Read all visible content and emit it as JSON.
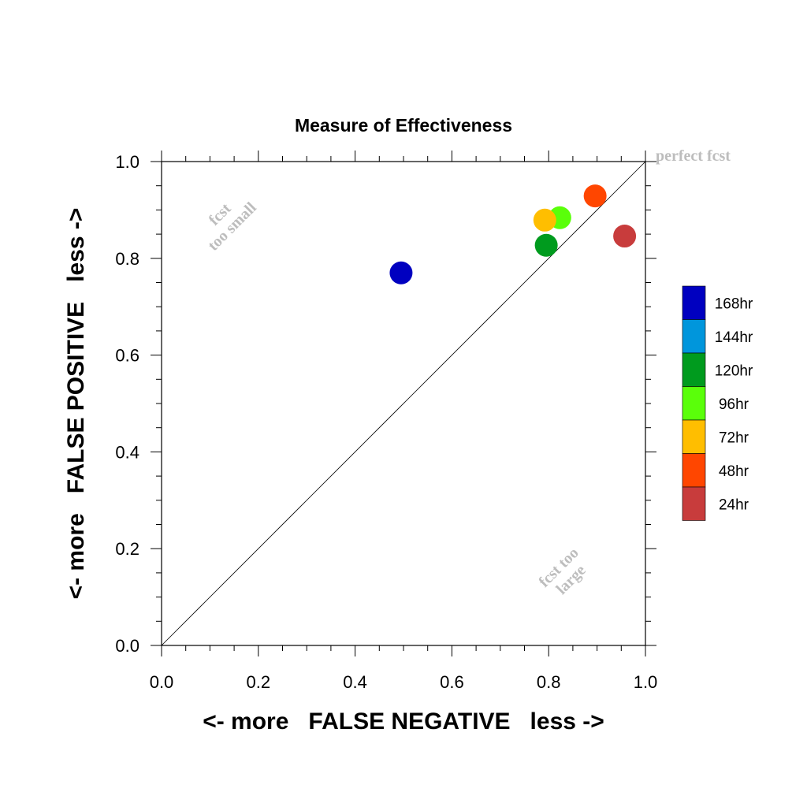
{
  "chart_data": {
    "type": "scatter",
    "title": "Measure of Effectiveness",
    "xlabel": "<- more   FALSE NEGATIVE   less ->",
    "ylabel": "<- more   FALSE POSITIVE   less ->",
    "xlim": [
      0,
      1
    ],
    "ylim": [
      0,
      1
    ],
    "x_ticks": [
      "0.0",
      "0.2",
      "0.4",
      "0.6",
      "0.8",
      "1.0"
    ],
    "y_ticks": [
      "0.0",
      "0.2",
      "0.4",
      "0.6",
      "0.8",
      "1.0"
    ],
    "grid": false,
    "reference_line": {
      "from": [
        0,
        0
      ],
      "to": [
        1,
        1
      ]
    },
    "annotations": {
      "perfect": "perfect fcst",
      "small_line1": "fcst",
      "small_line2": "too small",
      "large_line1": "fcst too",
      "large_line2": "large"
    },
    "legend": {
      "position": "right",
      "entries": [
        {
          "label": "168hr",
          "color": "#0000c0"
        },
        {
          "label": "144hr",
          "color": "#0096dc"
        },
        {
          "label": "120hr",
          "color": "#009b1e"
        },
        {
          "label": "96hr",
          "color": "#5aff0a"
        },
        {
          "label": "72hr",
          "color": "#ffbe00"
        },
        {
          "label": "48hr",
          "color": "#ff4600"
        },
        {
          "label": "24hr",
          "color": "#c83c3c"
        }
      ]
    },
    "points": [
      {
        "series": "168hr",
        "x": 0.495,
        "y": 0.77,
        "color": "#0000c0"
      },
      {
        "series": "120hr",
        "x": 0.795,
        "y": 0.827,
        "color": "#009b1e"
      },
      {
        "series": "96hr",
        "x": 0.823,
        "y": 0.884,
        "color": "#5aff0a"
      },
      {
        "series": "72hr",
        "x": 0.792,
        "y": 0.879,
        "color": "#ffbe00"
      },
      {
        "series": "48hr",
        "x": 0.896,
        "y": 0.929,
        "color": "#ff4600"
      },
      {
        "series": "24hr",
        "x": 0.957,
        "y": 0.846,
        "color": "#c83c3c"
      }
    ]
  }
}
